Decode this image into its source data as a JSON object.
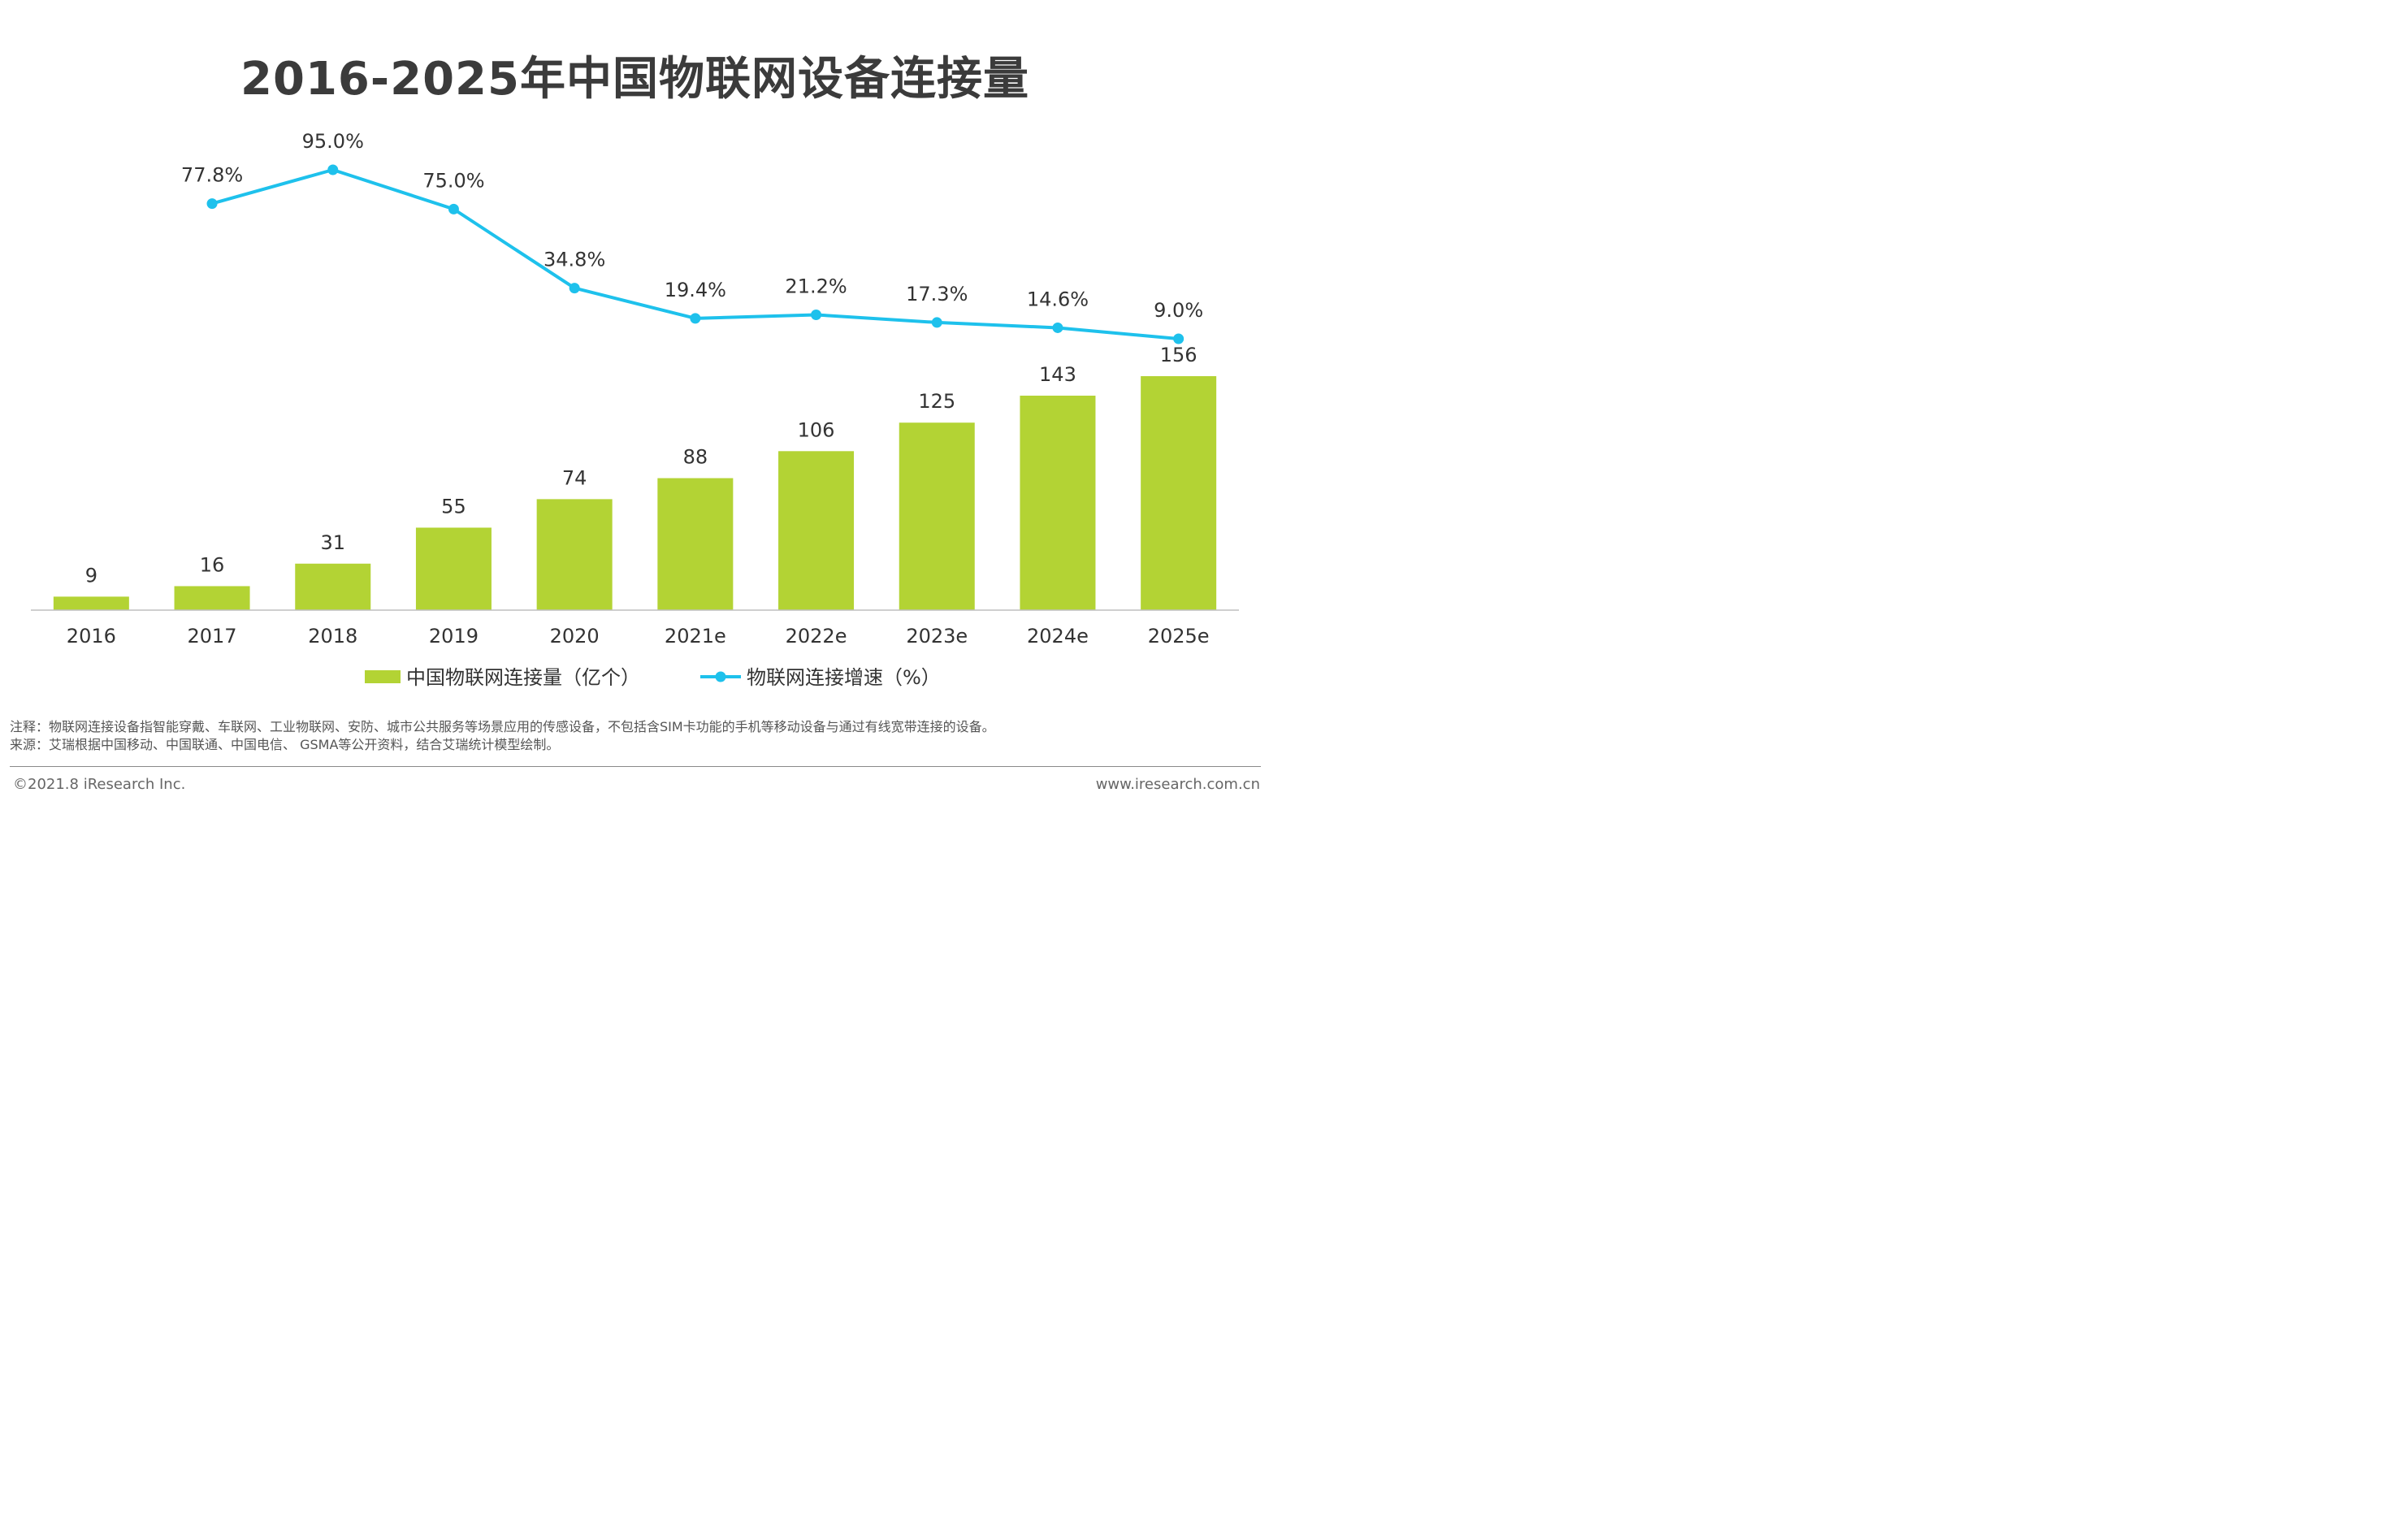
{
  "header": {
    "title": "2016-2025年中国物联网设备连接量"
  },
  "chart_data": {
    "type": "bar+line",
    "categories": [
      "2016",
      "2017",
      "2018",
      "2019",
      "2020",
      "2021e",
      "2022e",
      "2023e",
      "2024e",
      "2025e"
    ],
    "series": [
      {
        "name": "中国物联网连接量（亿个）",
        "type": "bar",
        "color": "#b3d334",
        "values": [
          9,
          16,
          31,
          55,
          74,
          88,
          106,
          125,
          143,
          156
        ],
        "labels": [
          "9",
          "16",
          "31",
          "55",
          "74",
          "88",
          "106",
          "125",
          "143",
          "156"
        ]
      },
      {
        "name": "物联网连接增速（%）",
        "type": "line",
        "color": "#1ec1ec",
        "values": [
          null,
          77.8,
          95.0,
          75.0,
          34.8,
          19.4,
          21.2,
          17.3,
          14.6,
          9.0
        ],
        "labels": [
          "",
          "77.8%",
          "95.0%",
          "75.0%",
          "34.8%",
          "19.4%",
          "21.2%",
          "17.3%",
          "14.6%",
          "9.0%"
        ]
      }
    ],
    "legend_position": "bottom",
    "grid": false
  },
  "notes": {
    "note": "注释：物联网连接设备指智能穿戴、车联网、工业物联网、安防、城市公共服务等场景应用的传感设备，不包括含SIM卡功能的手机等移动设备与通过有线宽带连接的设备。",
    "source": "来源：艾瑞根据中国移动、中国联通、中国电信、 GSMA等公开资料，结合艾瑞统计模型绘制。"
  },
  "footer": {
    "copyright": "©2021.8 iResearch Inc.",
    "website": "www.iresearch.com.cn"
  }
}
